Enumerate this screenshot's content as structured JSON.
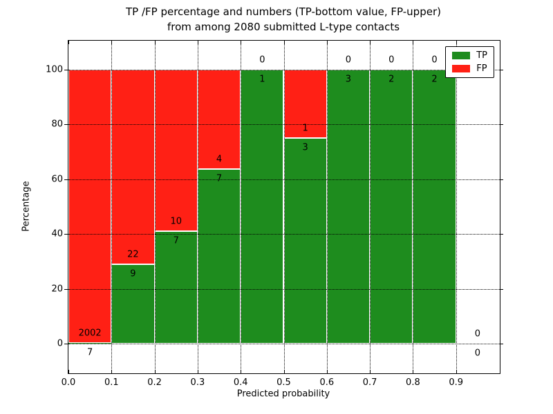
{
  "figure": {
    "title_line1": "TP /FP percentage and numbers (TP-bottom value, FP-upper)",
    "title_line2": "from among 2080 submitted L-type contacts"
  },
  "chart_data": {
    "type": "bar",
    "stacked": true,
    "percent_normalized": true,
    "title": "TP /FP percentage and numbers (TP-bottom value, FP-upper)\nfrom among 2080 submitted L-type contacts",
    "xlabel": "Predicted probability",
    "ylabel": "Percentage",
    "bin_edges": [
      0.0,
      0.1,
      0.2,
      0.3,
      0.4,
      0.5,
      0.6,
      0.7,
      0.8,
      0.9,
      1.0
    ],
    "series": [
      {
        "name": "TP",
        "color": "#1e8c1e",
        "values": [
          7,
          9,
          7,
          7,
          1,
          3,
          3,
          2,
          2,
          0
        ]
      },
      {
        "name": "FP",
        "color": "#ff2015",
        "values": [
          2002,
          22,
          10,
          4,
          0,
          1,
          0,
          0,
          0,
          0
        ]
      }
    ],
    "bar_green_percent": [
      0.35,
      29.03,
      41.18,
      63.64,
      100,
      75,
      100,
      100,
      100,
      0
    ],
    "total_contacts": 2080,
    "xtick_labels": [
      "0.0",
      "0.1",
      "0.2",
      "0.3",
      "0.4",
      "0.5",
      "0.6",
      "0.7",
      "0.8",
      "0.9"
    ],
    "ytick_values": [
      0,
      20,
      40,
      60,
      80,
      100
    ],
    "xlim": [
      0.0,
      1.0
    ],
    "ylim": [
      -11,
      110.6
    ],
    "grid": true,
    "legend": {
      "position": "upper right",
      "entries": [
        "TP",
        "FP"
      ]
    }
  }
}
